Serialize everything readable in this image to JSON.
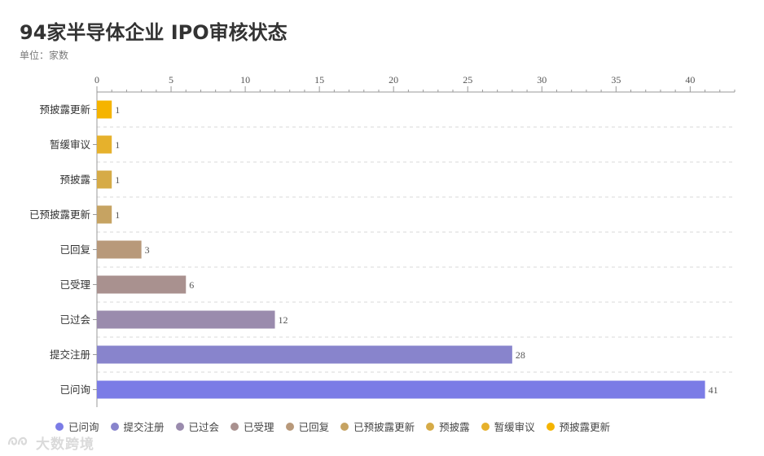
{
  "header": {
    "title": "94家半导体企业 IPO审核状态",
    "subtitle": "单位：家数"
  },
  "watermark": {
    "text": "大数跨境",
    "icon": "logo-mark"
  },
  "chart_data": {
    "type": "bar",
    "orientation": "horizontal",
    "categories": [
      "预披露更新",
      "暂缓审议",
      "预披露",
      "已预披露更新",
      "已回复",
      "已受理",
      "已过会",
      "提交注册",
      "已问询"
    ],
    "values": [
      1,
      1,
      1,
      1,
      3,
      6,
      12,
      28,
      41
    ],
    "colors": [
      "#f5b400",
      "#e6b12c",
      "#d6ab47",
      "#c6a362",
      "#b8997a",
      "#a9918f",
      "#9a8bad",
      "#8884cc",
      "#7b7ce6"
    ],
    "xaxis_position": "top",
    "xlim": [
      0,
      43
    ],
    "xticks": [
      0,
      5,
      10,
      15,
      20,
      25,
      30,
      35,
      40
    ],
    "grid": "dashed-horizontal",
    "data_labels": true,
    "legend_position": "bottom",
    "legend": [
      "已问询",
      "提交注册",
      "已过会",
      "已受理",
      "已回复",
      "已预披露更新",
      "预披露",
      "暂缓审议",
      "预披露更新"
    ]
  }
}
